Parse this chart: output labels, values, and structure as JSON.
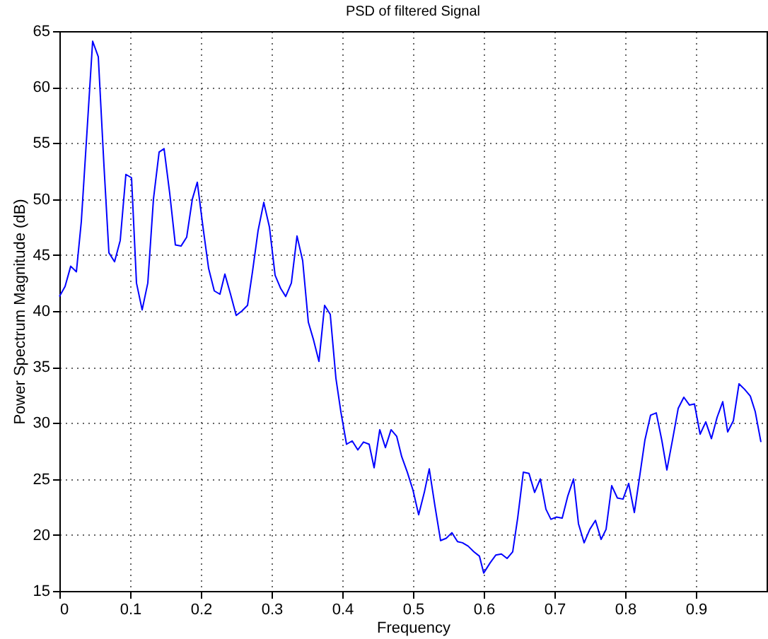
{
  "chart_data": {
    "type": "line",
    "title": "PSD of filtered Signal",
    "xlabel": "Frequency",
    "ylabel": "Power Spectrum Magnitude (dB)",
    "x": [
      0,
      0.008,
      0.016,
      0.024,
      0.031,
      0.039,
      0.047,
      0.055,
      0.063,
      0.07,
      0.078,
      0.086,
      0.094,
      0.102,
      0.109,
      0.117,
      0.125,
      0.133,
      0.141,
      0.148,
      0.156,
      0.164,
      0.172,
      0.18,
      0.188,
      0.195,
      0.203,
      0.211,
      0.219,
      0.227,
      0.234,
      0.242,
      0.25,
      0.258,
      0.266,
      0.273,
      0.281,
      0.289,
      0.297,
      0.305,
      0.313,
      0.32,
      0.328,
      0.336,
      0.344,
      0.352,
      0.359,
      0.367,
      0.375,
      0.383,
      0.391,
      0.398,
      0.406,
      0.414,
      0.422,
      0.43,
      0.438,
      0.445,
      0.453,
      0.461,
      0.469,
      0.477,
      0.484,
      0.492,
      0.5,
      0.508,
      0.516,
      0.523,
      0.531,
      0.539,
      0.547,
      0.555,
      0.563,
      0.57,
      0.578,
      0.586,
      0.594,
      0.6,
      0.609,
      0.617,
      0.625,
      0.633,
      0.641,
      0.648,
      0.656,
      0.664,
      0.672,
      0.68,
      0.688,
      0.695,
      0.703,
      0.711,
      0.719,
      0.727,
      0.734,
      0.742,
      0.75,
      0.758,
      0.766,
      0.773,
      0.781,
      0.789,
      0.797,
      0.805,
      0.813,
      0.82,
      0.828,
      0.836,
      0.844,
      0.852,
      0.859,
      0.867,
      0.875,
      0.883,
      0.891,
      0.898,
      0.906,
      0.914,
      0.922,
      0.93,
      0.938,
      0.945,
      0.953,
      0.961,
      0.969,
      0.977,
      0.984,
      0.992
    ],
    "series": [
      {
        "color": "#0000ff",
        "values": [
          41.3,
          42.2,
          44.0,
          43.5,
          48,
          56,
          64.1,
          62.7,
          53,
          45.2,
          44.4,
          46.3,
          52.2,
          51.9,
          42.5,
          40.1,
          42.5,
          50,
          54.2,
          54.5,
          50.5,
          45.9,
          45.8,
          46.6,
          50,
          51.5,
          47.5,
          43.8,
          41.8,
          41.5,
          43.3,
          41.5,
          39.6,
          40.0,
          40.5,
          43.5,
          47.2,
          49.7,
          47.5,
          43.2,
          42,
          41.3,
          42.5,
          46.7,
          44.5,
          39,
          37.5,
          35.5,
          40.5,
          39.7,
          34,
          31,
          28.1,
          28.4,
          27.6,
          28.3,
          28.1,
          26,
          29.4,
          27.8,
          29.4,
          28.8,
          27,
          25.6,
          24,
          21.8,
          23.8,
          25.9,
          22.6,
          19.5,
          19.7,
          20.2,
          19.4,
          19.3,
          19,
          18.5,
          18.1,
          16.6,
          17.5,
          18.2,
          18.3,
          17.9,
          18.5,
          21.5,
          25.6,
          25.5,
          23.8,
          25,
          22.3,
          21.4,
          21.6,
          21.5,
          23.5,
          25,
          21,
          19.3,
          20.5,
          21.3,
          19.6,
          20.5,
          24.4,
          23.3,
          23.2,
          24.6,
          22,
          25,
          28.5,
          30.7,
          30.9,
          28.4,
          25.8,
          28.5,
          31.3,
          32.3,
          31.6,
          31.7,
          29,
          30.1,
          28.6,
          30.5,
          31.9,
          29.2,
          30.2,
          33.5,
          33,
          32.4,
          31,
          28.3
        ]
      }
    ],
    "xlim": [
      0,
      1
    ],
    "xticks": [
      0,
      0.1,
      0.2,
      0.3,
      0.4,
      0.5,
      0.6,
      0.7,
      0.8,
      0.9
    ],
    "ylim": [
      15,
      65
    ],
    "yticks": [
      15,
      20,
      25,
      30,
      35,
      40,
      45,
      50,
      55,
      60,
      65
    ],
    "grid": true,
    "marker": "none",
    "line_style": "solid"
  }
}
